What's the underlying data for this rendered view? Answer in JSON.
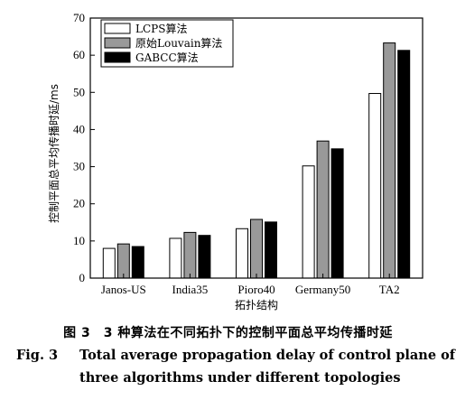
{
  "chart_data": {
    "type": "bar",
    "categories": [
      "Janos-US",
      "India35",
      "Pioro40",
      "Germany50",
      "TA2"
    ],
    "series": [
      {
        "name": "LCPS算法",
        "values": [
          8.0,
          10.7,
          13.3,
          30.2,
          49.7
        ],
        "color": "#ffffff"
      },
      {
        "name": "原始Louvain算法",
        "values": [
          9.2,
          12.3,
          15.8,
          36.9,
          63.3
        ],
        "color": "#999999"
      },
      {
        "name": "GABCC算法",
        "values": [
          8.5,
          11.5,
          15.1,
          34.8,
          61.3
        ],
        "color": "#000000"
      }
    ],
    "xlabel": "拓扑结构",
    "ylabel": "控制平面总平均传播时延/ms",
    "ylim": [
      0,
      70
    ],
    "yticks": [
      0,
      10,
      20,
      30,
      40,
      50,
      60,
      70
    ],
    "legend_position": "top-left",
    "grid": false
  },
  "caption": {
    "cn": "图 3　3 种算法在不同拓扑下的控制平面总平均传播时延",
    "en_label": "Fig. 3",
    "en_line1": "Total average propagation delay of control plane of",
    "en_line2": "three algorithms under different topologies"
  }
}
